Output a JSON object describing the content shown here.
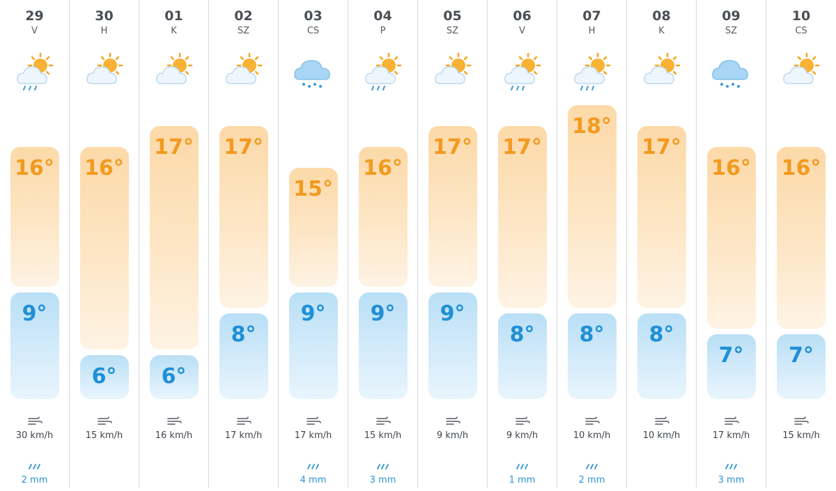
{
  "colors": {
    "high_temp": "#f29a1f",
    "low_temp": "#1f8fd6",
    "precip": "#2a93d4"
  },
  "scale": {
    "max_temp": 18,
    "min_temp": 6
  },
  "days": [
    {
      "date": "29",
      "dow": "V",
      "icon": "sun-cloud-rain-icon",
      "high": 16,
      "low": 9,
      "high_label": "16°",
      "low_label": "9°",
      "wind": "30 km/h",
      "precip": "2 mm"
    },
    {
      "date": "30",
      "dow": "H",
      "icon": "partly-cloudy-icon",
      "high": 16,
      "low": 6,
      "high_label": "16°",
      "low_label": "6°",
      "wind": "15 km/h",
      "precip": ""
    },
    {
      "date": "01",
      "dow": "K",
      "icon": "partly-cloudy-icon",
      "high": 17,
      "low": 6,
      "high_label": "17°",
      "low_label": "6°",
      "wind": "16 km/h",
      "precip": ""
    },
    {
      "date": "02",
      "dow": "SZ",
      "icon": "partly-cloudy-icon",
      "high": 17,
      "low": 8,
      "high_label": "17°",
      "low_label": "8°",
      "wind": "17 km/h",
      "precip": ""
    },
    {
      "date": "03",
      "dow": "CS",
      "icon": "rain-cloud-icon",
      "high": 15,
      "low": 9,
      "high_label": "15°",
      "low_label": "9°",
      "wind": "17 km/h",
      "precip": "4 mm"
    },
    {
      "date": "04",
      "dow": "P",
      "icon": "sun-cloud-rain-icon",
      "high": 16,
      "low": 9,
      "high_label": "16°",
      "low_label": "9°",
      "wind": "15 km/h",
      "precip": "3 mm"
    },
    {
      "date": "05",
      "dow": "SZ",
      "icon": "partly-cloudy-icon",
      "high": 17,
      "low": 9,
      "high_label": "17°",
      "low_label": "9°",
      "wind": "9 km/h",
      "precip": ""
    },
    {
      "date": "06",
      "dow": "V",
      "icon": "sun-cloud-rain-icon",
      "high": 17,
      "low": 8,
      "high_label": "17°",
      "low_label": "8°",
      "wind": "9 km/h",
      "precip": "1 mm"
    },
    {
      "date": "07",
      "dow": "H",
      "icon": "sun-cloud-rain-icon",
      "high": 18,
      "low": 8,
      "high_label": "18°",
      "low_label": "8°",
      "wind": "10 km/h",
      "precip": "2 mm"
    },
    {
      "date": "08",
      "dow": "K",
      "icon": "partly-cloudy-icon",
      "high": 17,
      "low": 8,
      "high_label": "17°",
      "low_label": "8°",
      "wind": "10 km/h",
      "precip": ""
    },
    {
      "date": "09",
      "dow": "SZ",
      "icon": "rain-cloud-icon",
      "high": 16,
      "low": 7,
      "high_label": "16°",
      "low_label": "7°",
      "wind": "17 km/h",
      "precip": "3 mm"
    },
    {
      "date": "10",
      "dow": "CS",
      "icon": "partly-cloudy-icon",
      "high": 16,
      "low": 7,
      "high_label": "16°",
      "low_label": "7°",
      "wind": "15 km/h",
      "precip": ""
    }
  ]
}
